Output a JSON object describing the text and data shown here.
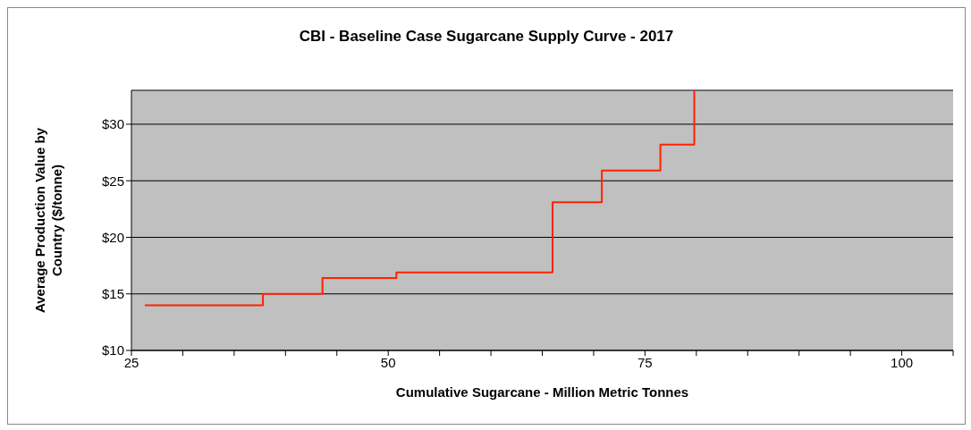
{
  "chart_data": {
    "type": "step",
    "title": "CBI - Baseline Case Sugarcane Supply Curve - 2017",
    "xlabel": "Cumulative Sugarcane - Million Metric Tonnes",
    "ylabel": "Average Production Value by\nCountry ($/tonne)",
    "x": [
      26.3,
      37.8,
      43.6,
      50.8,
      66.0,
      70.8,
      76.5,
      79.8
    ],
    "series": [
      {
        "color": "#ff2200",
        "values": [
          14.0,
          15.0,
          16.4,
          16.9,
          23.1,
          25.9,
          28.2,
          33
        ]
      }
    ],
    "xlim": [
      25,
      105
    ],
    "xticks": [
      25,
      {
        "value": 30,
        "label": null
      },
      {
        "value": 35,
        "label": null
      },
      {
        "value": 40,
        "label": null
      },
      {
        "value": 45,
        "label": null
      },
      50,
      {
        "value": 55,
        "label": null
      },
      {
        "value": 60,
        "label": null
      },
      {
        "value": 65,
        "label": null
      },
      {
        "value": 70,
        "label": null
      },
      75,
      {
        "value": 80,
        "label": null
      },
      {
        "value": 85,
        "label": null
      },
      {
        "value": 90,
        "label": null
      },
      {
        "value": 95,
        "label": null
      },
      100,
      {
        "value": 105,
        "label": null
      }
    ],
    "ylim": [
      10,
      33
    ],
    "yticks": [
      {
        "value": 10,
        "label": "$10"
      },
      {
        "value": 15,
        "label": "$15"
      },
      {
        "value": 20,
        "label": "$20"
      },
      {
        "value": 25,
        "label": "$25"
      },
      {
        "value": 30,
        "label": "$30"
      }
    ],
    "grid": "y",
    "legend": false,
    "marker": "none",
    "line_style": "solid"
  }
}
